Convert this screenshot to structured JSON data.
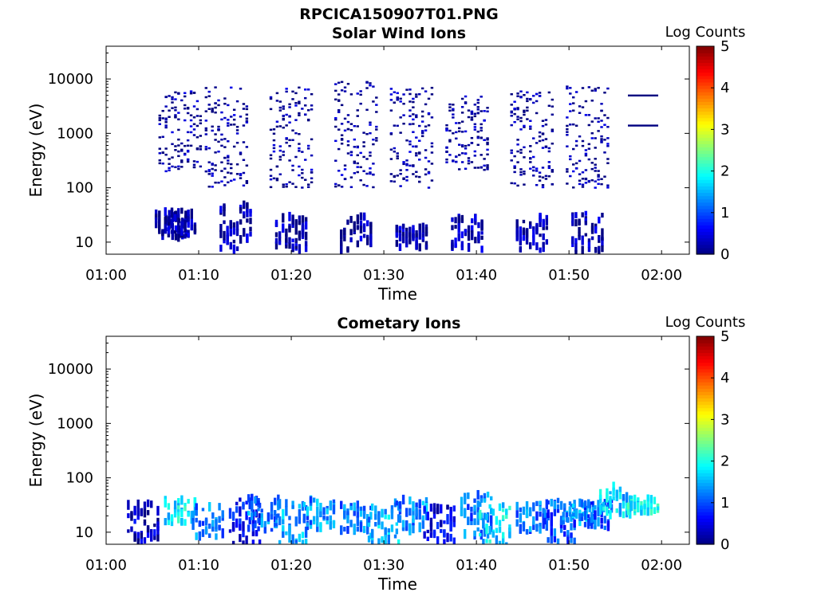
{
  "figure": {
    "title": "RPCICA150907T01.PNG"
  },
  "colorbar": {
    "colormap": "jet",
    "label": "Log Counts",
    "ticks": [
      "0",
      "1",
      "2",
      "3",
      "4",
      "5"
    ],
    "range": [
      0,
      5
    ]
  },
  "chart_data": [
    {
      "type": "heatmap",
      "title": "Solar Wind Ions",
      "xlabel": "Time",
      "ylabel": "Energy (eV)",
      "yscale": "log",
      "xlim": [
        "01:00",
        "02:03"
      ],
      "ylim": [
        6,
        40000
      ],
      "x_ticks": [
        "01:00",
        "01:10",
        "01:20",
        "01:30",
        "01:40",
        "01:50",
        "02:00"
      ],
      "y_ticks": [
        "10",
        "100",
        "1000",
        "10000"
      ],
      "cells": [
        {
          "t": "01:07",
          "e_lo": 12,
          "e_hi": 35,
          "log_counts": 0.2
        },
        {
          "t": "01:08",
          "e_lo": 12,
          "e_hi": 40,
          "log_counts": 0.2
        },
        {
          "t": "01:08",
          "e_lo": 200,
          "e_hi": 6000,
          "log_counts": 0.1
        },
        {
          "t": "01:14",
          "e_lo": 7,
          "e_hi": 50,
          "log_counts": 0.2
        },
        {
          "t": "01:13",
          "e_lo": 100,
          "e_hi": 7000,
          "log_counts": 0.1
        },
        {
          "t": "01:20",
          "e_lo": 7,
          "e_hi": 30,
          "log_counts": 0.2
        },
        {
          "t": "01:20",
          "e_lo": 100,
          "e_hi": 7000,
          "log_counts": 0.1
        },
        {
          "t": "01:27",
          "e_lo": 7,
          "e_hi": 30,
          "log_counts": 0.2
        },
        {
          "t": "01:27",
          "e_lo": 100,
          "e_hi": 9000,
          "log_counts": 0.1
        },
        {
          "t": "01:33",
          "e_lo": 8,
          "e_hi": 20,
          "log_counts": 0.2
        },
        {
          "t": "01:33",
          "e_lo": 100,
          "e_hi": 7000,
          "log_counts": 0.1
        },
        {
          "t": "01:39",
          "e_lo": 7,
          "e_hi": 30,
          "log_counts": 0.2
        },
        {
          "t": "01:39",
          "e_lo": 200,
          "e_hi": 5000,
          "log_counts": 0.1
        },
        {
          "t": "01:46",
          "e_lo": 7,
          "e_hi": 30,
          "log_counts": 0.2
        },
        {
          "t": "01:46",
          "e_lo": 100,
          "e_hi": 6000,
          "log_counts": 0.1
        },
        {
          "t": "01:52",
          "e_lo": 6,
          "e_hi": 35,
          "log_counts": 0.2
        },
        {
          "t": "01:52",
          "e_lo": 100,
          "e_hi": 8000,
          "log_counts": 0.1
        },
        {
          "t": "01:58",
          "e_lo": 4800,
          "e_hi": 5000,
          "log_counts": 0.0
        },
        {
          "t": "01:58",
          "e_lo": 1300,
          "e_hi": 1400,
          "log_counts": 0.0
        }
      ]
    },
    {
      "type": "heatmap",
      "title": "Cometary Ions",
      "xlabel": "Time",
      "ylabel": "Energy (eV)",
      "yscale": "log",
      "xlim": [
        "01:00",
        "02:03"
      ],
      "ylim": [
        6,
        40000
      ],
      "x_ticks": [
        "01:00",
        "01:10",
        "01:20",
        "01:30",
        "01:40",
        "01:50",
        "02:00"
      ],
      "y_ticks": [
        "10",
        "100",
        "1000",
        "10000"
      ],
      "cells": [
        {
          "t": "01:04",
          "e_lo": 6,
          "e_hi": 35,
          "log_counts": 0.3
        },
        {
          "t": "01:08",
          "e_lo": 15,
          "e_hi": 40,
          "log_counts": 1.8
        },
        {
          "t": "01:11",
          "e_lo": 8,
          "e_hi": 30,
          "log_counts": 1.2
        },
        {
          "t": "01:15",
          "e_lo": 6,
          "e_hi": 40,
          "log_counts": 0.6
        },
        {
          "t": "01:17",
          "e_lo": 10,
          "e_hi": 45,
          "log_counts": 1.2
        },
        {
          "t": "01:20",
          "e_lo": 6,
          "e_hi": 40,
          "log_counts": 1.4
        },
        {
          "t": "01:23",
          "e_lo": 12,
          "e_hi": 40,
          "log_counts": 1.3
        },
        {
          "t": "01:27",
          "e_lo": 8,
          "e_hi": 35,
          "log_counts": 1.2
        },
        {
          "t": "01:30",
          "e_lo": 6,
          "e_hi": 35,
          "log_counts": 1.5
        },
        {
          "t": "01:33",
          "e_lo": 10,
          "e_hi": 40,
          "log_counts": 1.3
        },
        {
          "t": "01:36",
          "e_lo": 6,
          "e_hi": 30,
          "log_counts": 0.5
        },
        {
          "t": "01:40",
          "e_lo": 8,
          "e_hi": 50,
          "log_counts": 1.2
        },
        {
          "t": "01:42",
          "e_lo": 6,
          "e_hi": 35,
          "log_counts": 1.7
        },
        {
          "t": "01:46",
          "e_lo": 10,
          "e_hi": 35,
          "log_counts": 1.2
        },
        {
          "t": "01:49",
          "e_lo": 6,
          "e_hi": 40,
          "log_counts": 1.0
        },
        {
          "t": "01:51",
          "e_lo": 15,
          "e_hi": 35,
          "log_counts": 1.4
        },
        {
          "t": "01:53",
          "e_lo": 12,
          "e_hi": 40,
          "log_counts": 1.0
        },
        {
          "t": "01:55",
          "e_lo": 20,
          "e_hi": 70,
          "log_counts": 1.6
        },
        {
          "t": "01:58",
          "e_lo": 23,
          "e_hi": 45,
          "log_counts": 1.9
        }
      ]
    }
  ]
}
